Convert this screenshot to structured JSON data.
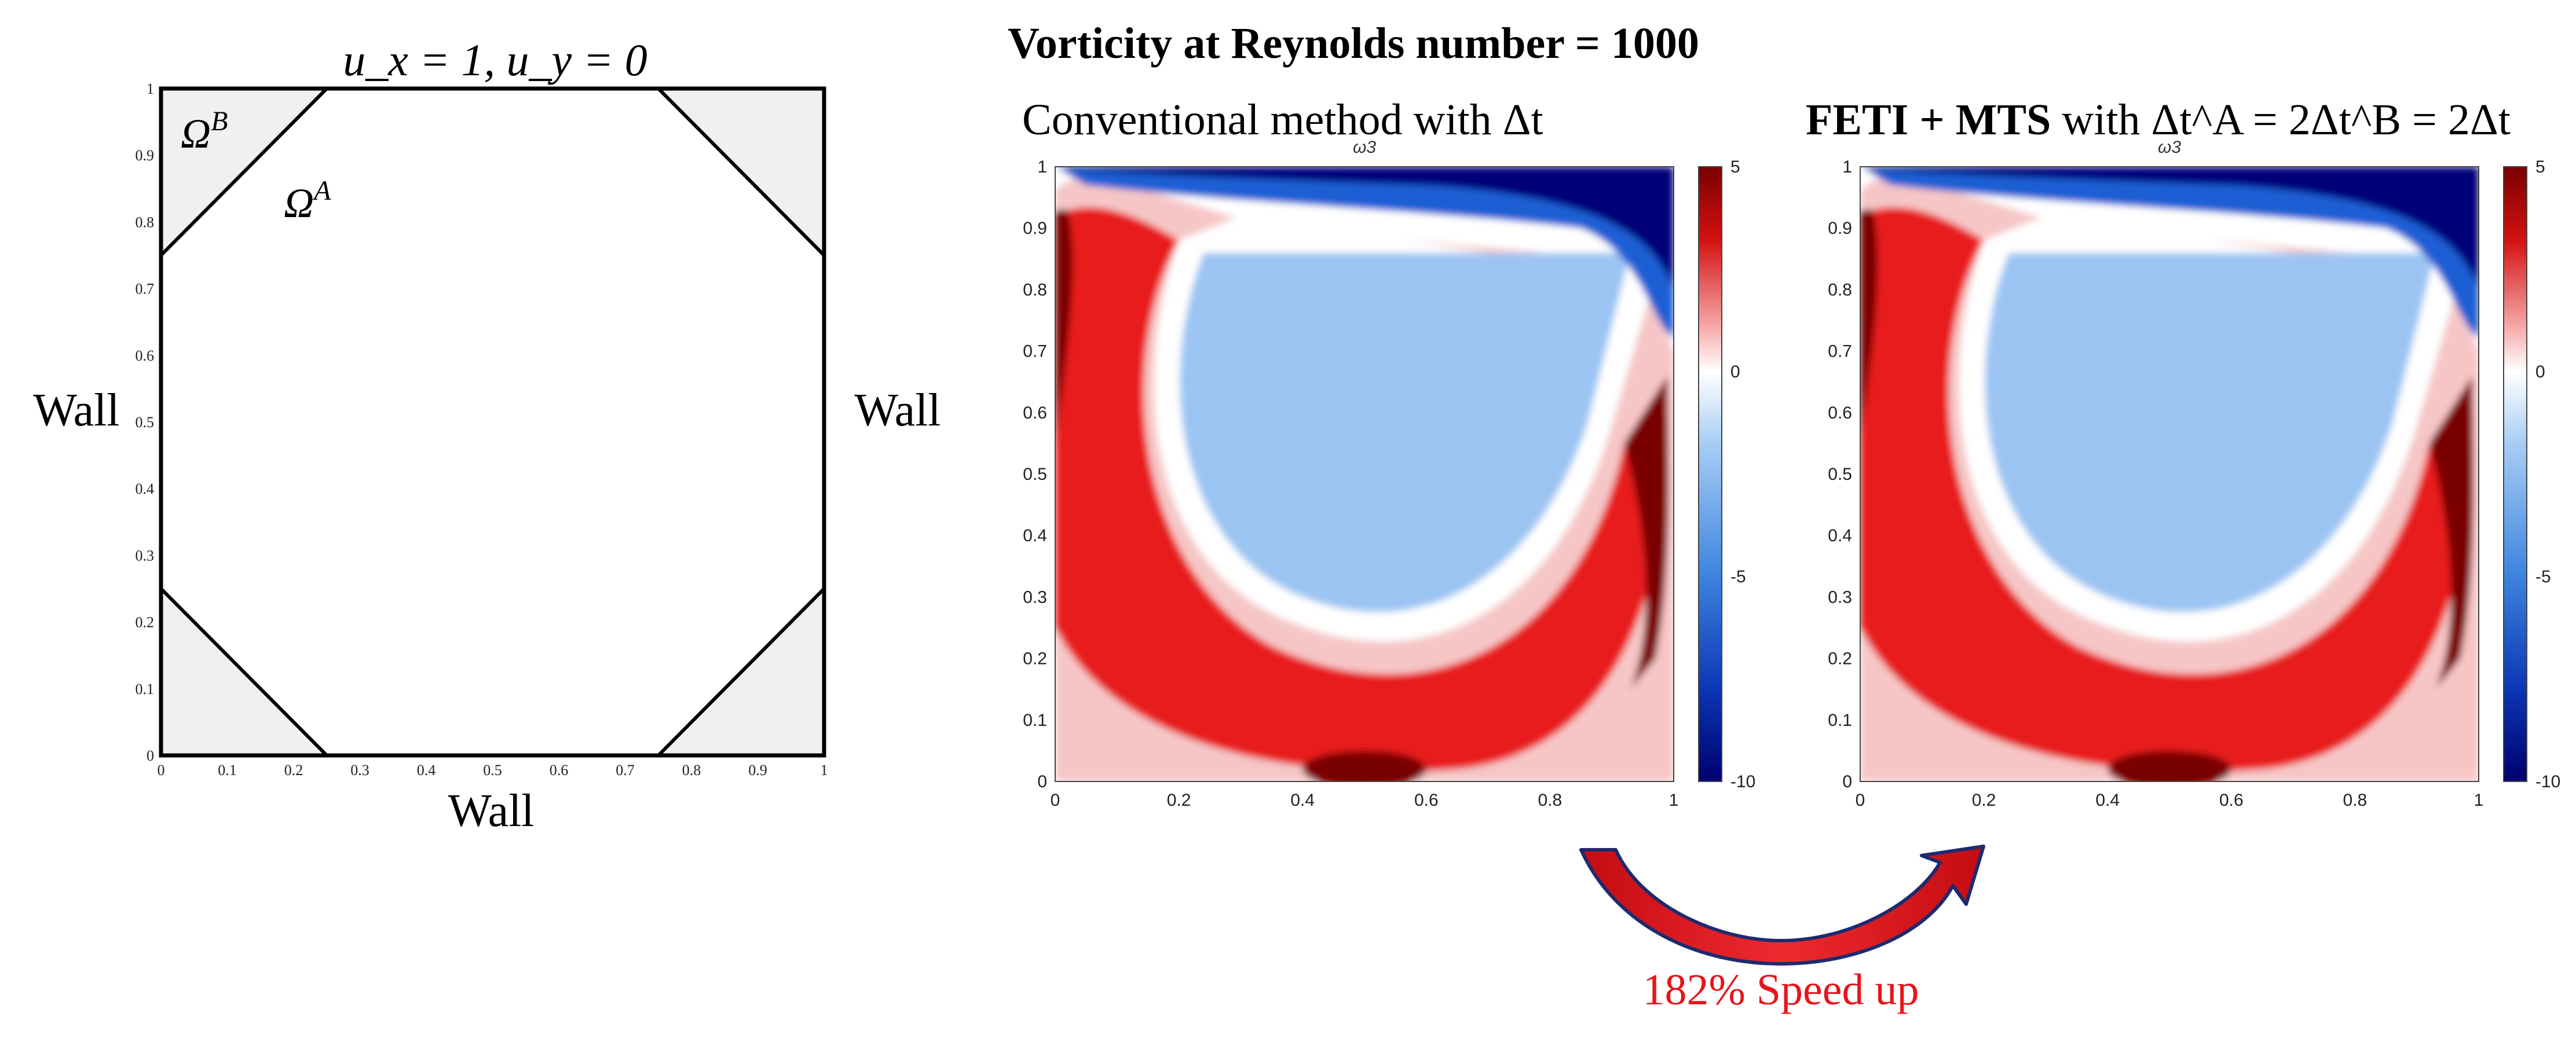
{
  "boundary": {
    "top_label": "u_x = 1, u_y = 0",
    "left_label": "Wall",
    "right_label": "Wall",
    "bottom_label": "Wall"
  },
  "domain": {
    "omega_b_label": "Ω^B",
    "omega_a_label": "Ω^A",
    "x_ticks": [
      "0",
      "0.1",
      "0.2",
      "0.3",
      "0.4",
      "0.5",
      "0.6",
      "0.7",
      "0.8",
      "0.9",
      "1"
    ],
    "y_ticks": [
      "0",
      "0.1",
      "0.2",
      "0.3",
      "0.4",
      "0.5",
      "0.6",
      "0.7",
      "0.8",
      "0.9",
      "1"
    ],
    "corner_cut": 0.25
  },
  "figure": {
    "title": "Vorticity at Reynolds number = 1000"
  },
  "plots": [
    {
      "title": "Conventional method with Δt",
      "axis_title": "ω3",
      "x_ticks": [
        "0",
        "0.2",
        "0.4",
        "0.6",
        "0.8",
        "1"
      ],
      "y_ticks": [
        "0",
        "0.1",
        "0.2",
        "0.3",
        "0.4",
        "0.5",
        "0.6",
        "0.7",
        "0.8",
        "0.9",
        "1"
      ],
      "colorbar_ticks": [
        "5",
        "0",
        "-5",
        "-10"
      ],
      "colorbar_range": [
        -10,
        5
      ]
    },
    {
      "title_bold": "FETI + MTS",
      "title_rest": " with Δt^A = 2Δt^B = 2Δt",
      "axis_title": "ω3",
      "x_ticks": [
        "0",
        "0.2",
        "0.4",
        "0.6",
        "0.8",
        "1"
      ],
      "y_ticks": [
        "0",
        "0.1",
        "0.2",
        "0.3",
        "0.4",
        "0.5",
        "0.6",
        "0.7",
        "0.8",
        "0.9",
        "1"
      ],
      "colorbar_ticks": [
        "5",
        "0",
        "-5",
        "-10"
      ],
      "colorbar_range": [
        -10,
        5
      ]
    }
  ],
  "speedup": {
    "label": "182% Speed up",
    "color": "#e8141b"
  },
  "colors": {
    "shade": "#f0f0f0",
    "neg_deep": "#00007a",
    "neg_mid": "#1a5fd4",
    "neg_light": "#9cc4f2",
    "pos_light": "#f6c6c6",
    "pos_mid": "#e81a1a",
    "pos_deep": "#7a0000",
    "arrow_fill": "#e0141b",
    "arrow_stroke": "#2a2a6a"
  }
}
